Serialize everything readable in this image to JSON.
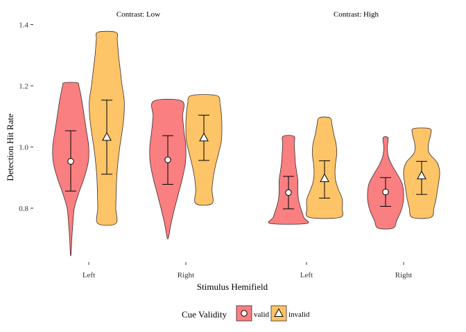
{
  "chart_data": {
    "type": "violin",
    "xlabel": "Stimulus Hemifield",
    "ylabel": "Detection Hit Rate",
    "ylim": [
      0.6,
      1.42
    ],
    "y_ticks": [
      "0.8",
      "1.0",
      "1.2",
      "1.4"
    ],
    "y_tick_values": [
      0.8,
      1.0,
      1.2,
      1.4
    ],
    "facets": [
      {
        "title": "Contrast: Low",
        "categories": [
          "Left",
          "Right"
        ]
      },
      {
        "title": "Contrast: High",
        "categories": [
          "Left",
          "Right"
        ]
      }
    ],
    "legend": {
      "title": "Cue Validity",
      "position": "bottom",
      "entries": [
        {
          "label": "valid",
          "color": "#f8696b",
          "marker": "circle"
        },
        {
          "label": "invalid",
          "color": "#fdba4e",
          "marker": "triangle"
        }
      ]
    },
    "series": [
      {
        "name": "valid",
        "color": "#f8696b",
        "marker": "circle",
        "groups": [
          {
            "facet": 0,
            "category": "Left",
            "mean": 0.953,
            "ci": [
              0.856,
              1.053
            ],
            "violin": [
              [
                0.65,
                0.02
              ],
              [
                0.7,
                0.06
              ],
              [
                0.75,
                0.12
              ],
              [
                0.8,
                0.2
              ],
              [
                0.85,
                0.45
              ],
              [
                0.9,
                0.75
              ],
              [
                0.95,
                0.97
              ],
              [
                1.0,
                1.0
              ],
              [
                1.05,
                0.88
              ],
              [
                1.1,
                0.75
              ],
              [
                1.15,
                0.62
              ],
              [
                1.2,
                0.45
              ],
              [
                1.21,
                0.35
              ]
            ]
          },
          {
            "facet": 0,
            "category": "Right",
            "mean": 0.958,
            "ci": [
              0.878,
              1.037
            ],
            "violin": [
              [
                0.705,
                0.04
              ],
              [
                0.75,
                0.18
              ],
              [
                0.8,
                0.38
              ],
              [
                0.85,
                0.6
              ],
              [
                0.9,
                0.82
              ],
              [
                0.95,
                0.98
              ],
              [
                1.0,
                1.0
              ],
              [
                1.05,
                0.9
              ],
              [
                1.1,
                0.82
              ],
              [
                1.15,
                0.78
              ]
            ]
          },
          {
            "facet": 1,
            "category": "Left",
            "mean": 0.851,
            "ci": [
              0.798,
              0.904
            ],
            "violin": [
              [
                0.75,
                1.0
              ],
              [
                0.77,
                0.85
              ],
              [
                0.8,
                0.68
              ],
              [
                0.83,
                0.55
              ],
              [
                0.86,
                0.52
              ],
              [
                0.89,
                0.52
              ],
              [
                0.92,
                0.45
              ],
              [
                0.95,
                0.38
              ],
              [
                0.98,
                0.35
              ],
              [
                1.01,
                0.32
              ],
              [
                1.035,
                0.3
              ]
            ]
          },
          {
            "facet": 1,
            "category": "Right",
            "mean": 0.853,
            "ci": [
              0.806,
              0.9
            ],
            "violin": [
              [
                0.735,
                0.42
              ],
              [
                0.76,
                0.62
              ],
              [
                0.79,
                0.85
              ],
              [
                0.82,
                0.98
              ],
              [
                0.85,
                1.0
              ],
              [
                0.88,
                0.92
              ],
              [
                0.91,
                0.66
              ],
              [
                0.94,
                0.36
              ],
              [
                0.97,
                0.15
              ],
              [
                1.0,
                0.1
              ],
              [
                1.03,
                0.14
              ]
            ]
          }
        ]
      },
      {
        "name": "invalid",
        "color": "#fdba4e",
        "marker": "triangle",
        "groups": [
          {
            "facet": 0,
            "category": "Left",
            "mean": 1.032,
            "ci": [
              0.911,
              1.153
            ],
            "violin": [
              [
                0.75,
                0.5
              ],
              [
                0.8,
                0.5
              ],
              [
                0.85,
                0.52
              ],
              [
                0.9,
                0.55
              ],
              [
                0.95,
                0.62
              ],
              [
                1.0,
                0.72
              ],
              [
                1.05,
                0.85
              ],
              [
                1.1,
                0.95
              ],
              [
                1.15,
                0.97
              ],
              [
                1.2,
                0.85
              ],
              [
                1.25,
                0.75
              ],
              [
                1.3,
                0.65
              ],
              [
                1.35,
                0.58
              ],
              [
                1.375,
                0.5
              ]
            ]
          },
          {
            "facet": 0,
            "category": "Right",
            "mean": 1.03,
            "ci": [
              0.956,
              1.104
            ],
            "violin": [
              [
                0.815,
                0.45
              ],
              [
                0.86,
                0.45
              ],
              [
                0.9,
                0.52
              ],
              [
                0.94,
                0.65
              ],
              [
                0.98,
                0.82
              ],
              [
                1.02,
                0.97
              ],
              [
                1.06,
                1.0
              ],
              [
                1.1,
                0.98
              ],
              [
                1.14,
                0.9
              ],
              [
                1.168,
                0.7
              ]
            ]
          },
          {
            "facet": 1,
            "category": "Left",
            "mean": 0.897,
            "ci": [
              0.833,
              0.955
            ],
            "violin": [
              [
                0.77,
                0.85
              ],
              [
                0.8,
                0.98
              ],
              [
                0.83,
                0.98
              ],
              [
                0.86,
                0.78
              ],
              [
                0.89,
                0.62
              ],
              [
                0.92,
                0.58
              ],
              [
                0.95,
                0.62
              ],
              [
                0.98,
                0.68
              ],
              [
                1.01,
                0.64
              ],
              [
                1.04,
                0.52
              ],
              [
                1.07,
                0.42
              ],
              [
                1.095,
                0.3
              ]
            ]
          },
          {
            "facet": 1,
            "category": "Right",
            "mean": 0.906,
            "ci": [
              0.845,
              0.953
            ],
            "violin": [
              [
                0.77,
                0.52
              ],
              [
                0.8,
                0.68
              ],
              [
                0.83,
                0.8
              ],
              [
                0.86,
                0.88
              ],
              [
                0.89,
                0.96
              ],
              [
                0.92,
                1.0
              ],
              [
                0.95,
                0.85
              ],
              [
                0.98,
                0.42
              ],
              [
                1.01,
                0.38
              ],
              [
                1.04,
                0.5
              ],
              [
                1.06,
                0.45
              ]
            ]
          }
        ]
      }
    ]
  }
}
